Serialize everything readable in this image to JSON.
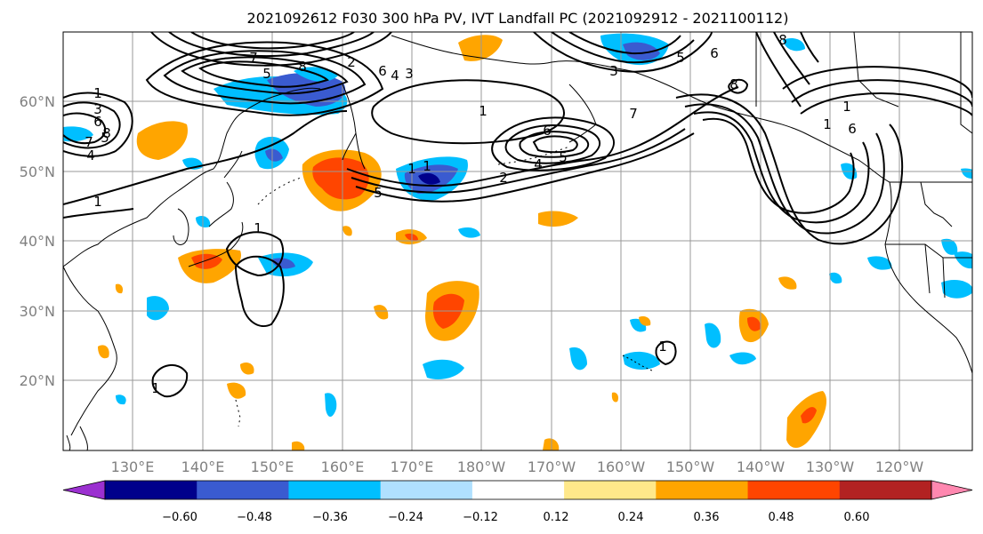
{
  "title": "2021092612 F030 300 hPa PV, IVT Landfall PC (2021092912 - 2021100112)",
  "lon_labels": [
    "130°E",
    "140°E",
    "150°E",
    "160°E",
    "170°E",
    "180°W",
    "170°W",
    "160°W",
    "150°W",
    "140°W",
    "130°W",
    "120°W"
  ],
  "lat_labels": [
    "60°N",
    "50°N",
    "40°N",
    "30°N",
    "20°N"
  ],
  "colorbar": {
    "tick_labels": [
      "−0.60",
      "−0.48",
      "−0.36",
      "−0.24",
      "−0.12",
      "0.12",
      "0.24",
      "0.36",
      "0.48",
      "0.60"
    ],
    "colors": [
      "#9b30d0",
      "#00008b",
      "#3a5bd0",
      "#00bfff",
      "#b0e0ff",
      "#ffffff",
      "#ffe88a",
      "#ffa500",
      "#ff4500",
      "#b22222",
      "#ff88b0"
    ]
  },
  "contour_labels": [
    "1",
    "3",
    "6",
    "7",
    "5",
    "8",
    "4",
    "1",
    "1",
    "1",
    "2",
    "4",
    "5",
    "6",
    "1",
    "2",
    "3",
    "4",
    "5",
    "6",
    "7",
    "8",
    "5",
    "8",
    "6",
    "7",
    "1",
    "1",
    "8",
    "6",
    "5",
    "3",
    "1",
    "1",
    "1"
  ],
  "colors": {
    "frame": "#000000",
    "grid": "#999999",
    "coast": "#000000",
    "contour": "#000000"
  }
}
